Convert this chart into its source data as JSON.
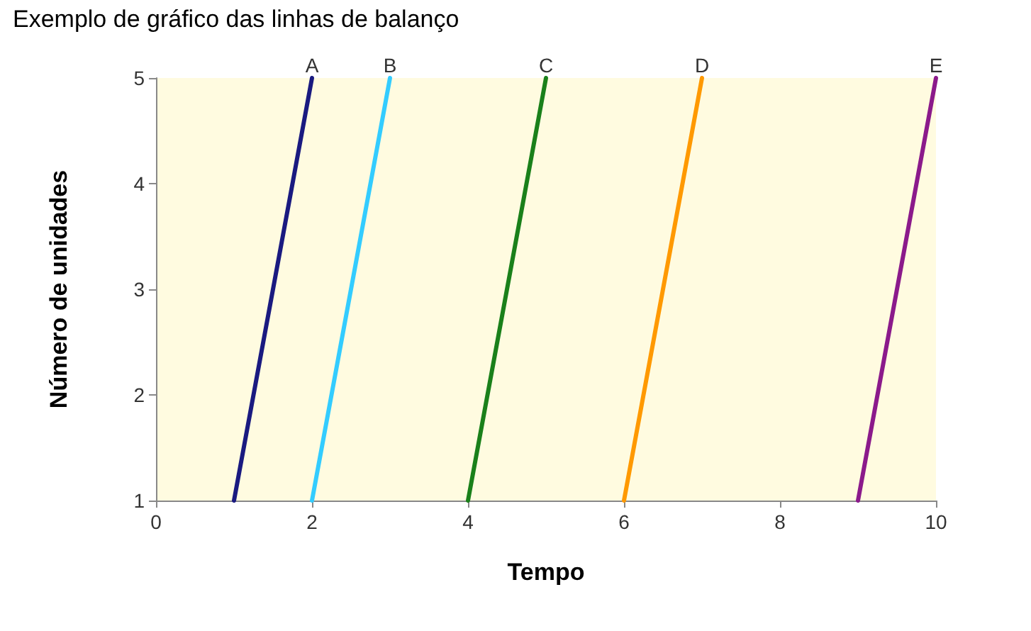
{
  "chart_data": {
    "type": "line",
    "title": "Exemplo de gráfico das linhas de balanço",
    "xlabel": "Tempo",
    "ylabel": "Número de unidades",
    "xlim": [
      0,
      10
    ],
    "xticks": [
      0,
      2,
      4,
      6,
      8,
      10
    ],
    "ylim": [
      1,
      5
    ],
    "yticks": [
      1,
      2,
      3,
      4,
      5
    ],
    "grid": false,
    "legend": false,
    "marker": "none",
    "line_style": "solid",
    "series": [
      {
        "name": "A",
        "color": "#1a1a80",
        "x": [
          1,
          2
        ],
        "values": [
          1,
          5
        ]
      },
      {
        "name": "B",
        "color": "#33ccff",
        "x": [
          2,
          3
        ],
        "values": [
          1,
          5
        ]
      },
      {
        "name": "C",
        "color": "#1a801a",
        "x": [
          4,
          5
        ],
        "values": [
          1,
          5
        ]
      },
      {
        "name": "D",
        "color": "#ff9900",
        "x": [
          6,
          7
        ],
        "values": [
          1,
          5
        ]
      },
      {
        "name": "E",
        "color": "#8b1a8b",
        "x": [
          9,
          10
        ],
        "values": [
          1,
          5
        ]
      }
    ]
  }
}
